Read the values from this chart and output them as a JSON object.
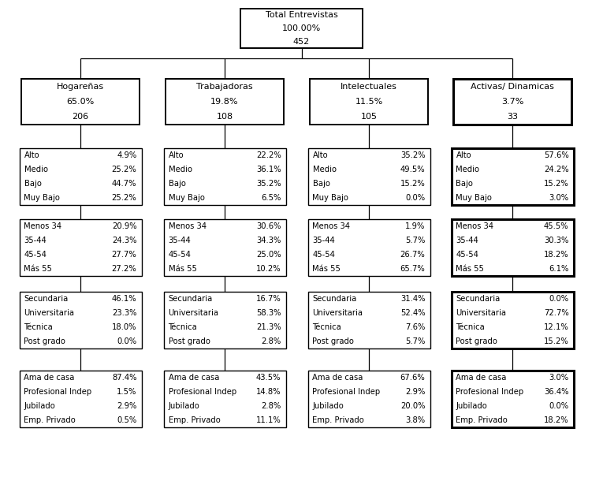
{
  "root": {
    "lines": [
      "Total Entrevistas",
      "100.00%",
      "452"
    ]
  },
  "segments": [
    {
      "lines": [
        "Hogareñas",
        "65.0%",
        "206"
      ]
    },
    {
      "lines": [
        "Trabajadoras",
        "19.8%",
        "108"
      ]
    },
    {
      "lines": [
        "Intelectuales",
        "11.5%",
        "105"
      ]
    },
    {
      "lines": [
        "Activas/ Dinamicas",
        "3.7%",
        "33"
      ]
    }
  ],
  "nse": [
    {
      "left": [
        "Alto",
        "Medio",
        "Bajo",
        "Muy Bajo"
      ],
      "right": [
        "4.9%",
        "25.2%",
        "44.7%",
        "25.2%"
      ]
    },
    {
      "left": [
        "Alto",
        "Medio",
        "Bajo",
        "Muy Bajo"
      ],
      "right": [
        "22.2%",
        "36.1%",
        "35.2%",
        "6.5%"
      ]
    },
    {
      "left": [
        "Alto",
        "Medio",
        "Bajo",
        "Muy Bajo"
      ],
      "right": [
        "35.2%",
        "49.5%",
        "15.2%",
        "0.0%"
      ]
    },
    {
      "left": [
        "Alto",
        "Medio",
        "Bajo",
        "Muy Bajo"
      ],
      "right": [
        "57.6%",
        "24.2%",
        "15.2%",
        "3.0%"
      ]
    }
  ],
  "age": [
    {
      "left": [
        "Menos 34",
        "35-44",
        "45-54",
        "Más 55"
      ],
      "right": [
        "20.9%",
        "24.3%",
        "27.7%",
        "27.2%"
      ]
    },
    {
      "left": [
        "Menos 34",
        "35-44",
        "45-54",
        "Más 55"
      ],
      "right": [
        "30.6%",
        "34.3%",
        "25.0%",
        "10.2%"
      ]
    },
    {
      "left": [
        "Menos 34",
        "35-44",
        "45-54",
        "Más 55"
      ],
      "right": [
        "1.9%",
        "5.7%",
        "26.7%",
        "65.7%"
      ]
    },
    {
      "left": [
        "Menos 34",
        "35-44",
        "45-54",
        "Más 55"
      ],
      "right": [
        "45.5%",
        "30.3%",
        "18.2%",
        "6.1%"
      ]
    }
  ],
  "edu": [
    {
      "left": [
        "Secundaria",
        "Universitaria",
        "Técnica",
        "Post grado"
      ],
      "right": [
        "46.1%",
        "23.3%",
        "18.0%",
        "0.0%"
      ]
    },
    {
      "left": [
        "Secundaria",
        "Universitaria",
        "Técnica",
        "Post grado"
      ],
      "right": [
        "16.7%",
        "58.3%",
        "21.3%",
        "2.8%"
      ]
    },
    {
      "left": [
        "Secundaria",
        "Universitaria",
        "Técnica",
        "Post grado"
      ],
      "right": [
        "31.4%",
        "52.4%",
        "7.6%",
        "5.7%"
      ]
    },
    {
      "left": [
        "Secundaria",
        "Universitaria",
        "Técnica",
        "Post grado"
      ],
      "right": [
        "0.0%",
        "72.7%",
        "12.1%",
        "15.2%"
      ]
    }
  ],
  "occ": [
    {
      "left": [
        "Ama de casa",
        "Profesional Indep",
        "Jubilado",
        "Emp. Privado"
      ],
      "right": [
        "87.4%",
        "1.5%",
        "2.9%",
        "0.5%"
      ]
    },
    {
      "left": [
        "Ama de casa",
        "Profesional Indep",
        "Jubilado",
        "Emp. Privado"
      ],
      "right": [
        "43.5%",
        "14.8%",
        "2.8%",
        "11.1%"
      ]
    },
    {
      "left": [
        "Ama de casa",
        "Profesional Indep",
        "Jubilado",
        "Emp. Privado"
      ],
      "right": [
        "67.6%",
        "2.9%",
        "20.0%",
        "3.8%"
      ]
    },
    {
      "left": [
        "Ama de casa",
        "Profesional Indep",
        "Jubilado",
        "Emp. Privado"
      ],
      "right": [
        "3.0%",
        "36.4%",
        "0.0%",
        "18.2%"
      ]
    }
  ],
  "bg_color": "#ffffff",
  "box_bg": "#ffffff",
  "box_edge": "#000000"
}
